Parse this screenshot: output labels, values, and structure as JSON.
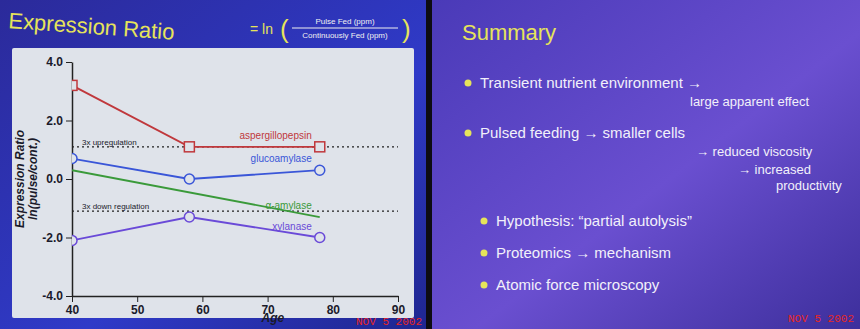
{
  "chart_data": {
    "type": "line",
    "title": "Expression Ratio",
    "formula": {
      "lead": "= ln",
      "numerator": "Pulse Fed (ppm)",
      "denominator": "Continuously Fed (ppm)"
    },
    "x_label": "Age",
    "y_label": [
      "Expression Ratio",
      "ln(pulse/cont.)"
    ],
    "xlim": [
      40,
      90
    ],
    "xticks": [
      40,
      50,
      60,
      70,
      80,
      90
    ],
    "ylim": [
      -4,
      4
    ],
    "yticks": [
      {
        "value": -4,
        "label": "-4.0"
      },
      {
        "value": -2,
        "label": "-2.0"
      },
      {
        "value": 0,
        "label": "0.0"
      },
      {
        "value": 2,
        "label": "2.0"
      },
      {
        "value": 4,
        "label": "4.0"
      }
    ],
    "grid": false,
    "series": [
      {
        "name": "aspergillopepsin",
        "color": "#c0383c",
        "marker": "square",
        "x": [
          40,
          58,
          78
        ],
        "values": [
          3.2,
          1.1,
          1.1
        ]
      },
      {
        "name": "glucoamylase",
        "color": "#3a56d8",
        "marker": "circle",
        "x": [
          40,
          58,
          78
        ],
        "values": [
          0.7,
          0.0,
          0.3
        ]
      },
      {
        "name": "α-amylase",
        "color": "#3a9a3a",
        "marker": "none",
        "x": [
          40,
          78
        ],
        "values": [
          0.3,
          -1.3
        ]
      },
      {
        "name": "xylanase",
        "color": "#6a4ad8",
        "marker": "circle",
        "x": [
          40,
          58,
          78
        ],
        "values": [
          -2.1,
          -1.3,
          -2.0
        ]
      }
    ],
    "reference_lines": [
      {
        "value": 1.1,
        "label": "3x upregulation"
      },
      {
        "value": -1.1,
        "label": "3x down regulation"
      }
    ],
    "date_stamp": "NOV 5 2002"
  },
  "summary_slide": {
    "title": "Summary",
    "bullets": [
      [
        "Transient nutrient environment →",
        "large apparent effect"
      ],
      [
        "Pulsed feeding → smaller cells",
        "→ reduced viscosity",
        "→ increased",
        "productivity"
      ]
    ],
    "sub_bullets": [
      "Hypothesis: “partial autolysis”",
      "Proteomics → mechanism",
      "Atomic force microscopy"
    ],
    "date_stamp": "NOV 5 2002"
  }
}
